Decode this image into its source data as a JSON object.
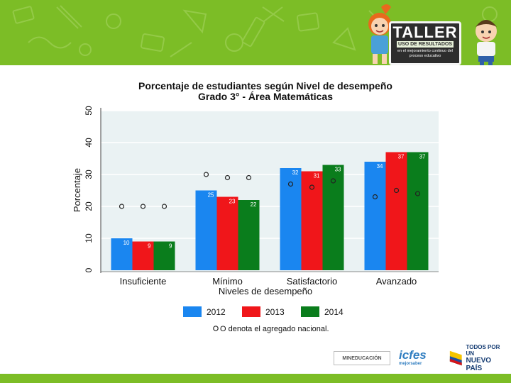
{
  "header": {
    "badge_title": "TALLER",
    "badge_subtitle": "USO DE RESULTADOS",
    "badge_caption": "en el mejoramiento continuo del proceso educativo"
  },
  "chart_data": {
    "type": "bar",
    "title": "Porcentaje de estudiantes según Nivel de desempeño",
    "subtitle": "Grado 3° - Área  Matemáticas",
    "xlabel": "Niveles de desempeño",
    "ylabel": "Porcentaje",
    "ylim": [
      0,
      50
    ],
    "yticks": [
      0,
      10,
      20,
      30,
      40,
      50
    ],
    "categories": [
      "Insuficiente",
      "Mínimo",
      "Satisfactorio",
      "Avanzado"
    ],
    "series": [
      {
        "name": "2012",
        "color": "#1a86f0",
        "values": [
          10,
          25,
          32,
          34
        ]
      },
      {
        "name": "2013",
        "color": "#f0161a",
        "values": [
          9,
          23,
          31,
          37
        ]
      },
      {
        "name": "2014",
        "color": "#0a7d1c",
        "values": [
          9,
          22,
          33,
          37
        ]
      }
    ],
    "national_aggregate": [
      {
        "name": "2012",
        "values": [
          20,
          30,
          27,
          23
        ]
      },
      {
        "name": "2013",
        "values": [
          20,
          29,
          26,
          25
        ]
      },
      {
        "name": "2014",
        "values": [
          20,
          29,
          28,
          24
        ]
      }
    ],
    "grid": true,
    "legend_position": "bottom",
    "note": "O denota el agregado nacional."
  },
  "footer": {
    "logo1": "MINEDUCACIÓN",
    "logo2_main": "icfes",
    "logo2_sub": "mejorsaber",
    "logo3_line1": "TODOS POR UN",
    "logo3_line2": "NUEVO PAÍS"
  },
  "colors": {
    "banner_green": "#7cbd26",
    "plot_bg": "#eaf2f3",
    "grid": "#ffffff"
  }
}
